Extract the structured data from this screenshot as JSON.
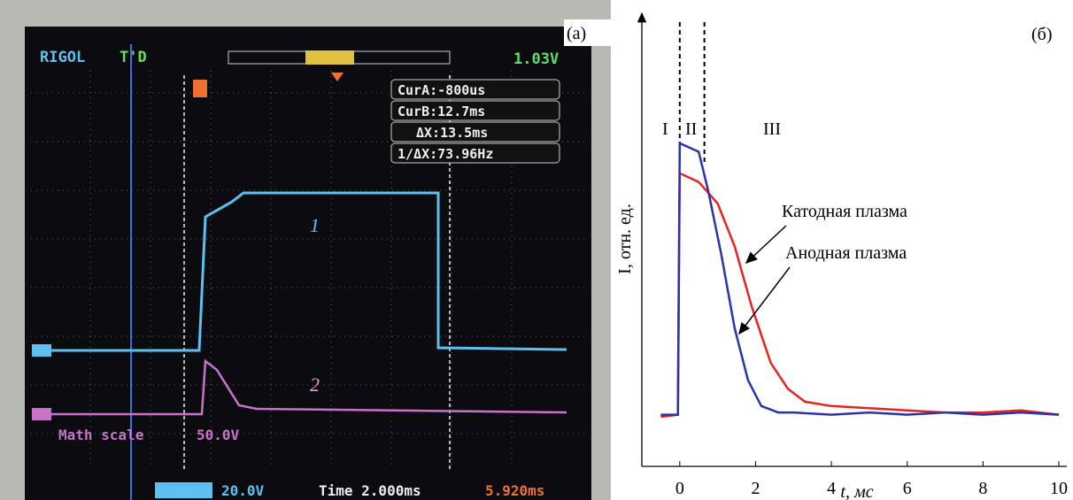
{
  "oscilloscope": {
    "label": "(a)",
    "brand": "RIGOL",
    "trigger_state": "T'D",
    "trigger_level": "1.03V",
    "cursors": [
      "CurA:-800us",
      "CurB:12.7ms",
      "ΔX:13.5ms",
      "1/ΔX:73.96Hz"
    ],
    "trace_labels": [
      "1",
      "2"
    ],
    "math_scale": "Math scale",
    "math_value": "50.0V",
    "channel_scale": "20.0V",
    "time": "Time 2.000ms",
    "offset": "5.920ms"
  },
  "chart_data": {
    "type": "line",
    "label": "(б)",
    "xlabel": "t, мс",
    "ylabel": "I, отн. ед.",
    "xlim": [
      -1,
      10
    ],
    "xticks": [
      0,
      2,
      4,
      6,
      8,
      10
    ],
    "ylim": [
      0,
      1
    ],
    "vlines": [
      0,
      0.65
    ],
    "regions": [
      "I",
      "II",
      "III"
    ],
    "series": [
      {
        "name": "Катодная плазма",
        "color": "#e8231f",
        "x": [
          -0.5,
          -0.05,
          0,
          0.5,
          1.0,
          1.45,
          1.9,
          2.4,
          2.85,
          3.3,
          4,
          5,
          6,
          7,
          8,
          9,
          10
        ],
        "values": [
          0.115,
          0.12,
          0.68,
          0.66,
          0.61,
          0.51,
          0.37,
          0.24,
          0.18,
          0.15,
          0.14,
          0.135,
          0.13,
          0.125,
          0.125,
          0.13,
          0.12
        ]
      },
      {
        "name": "Анодная плазма",
        "color": "#2b33a8",
        "x": [
          -0.5,
          -0.05,
          0,
          0.5,
          0.75,
          1.1,
          1.45,
          1.8,
          2.15,
          2.6,
          3,
          4,
          5,
          6,
          7,
          8,
          9,
          10
        ],
        "values": [
          0.12,
          0.12,
          0.75,
          0.73,
          0.64,
          0.49,
          0.32,
          0.2,
          0.14,
          0.125,
          0.125,
          0.12,
          0.125,
          0.12,
          0.125,
          0.12,
          0.125,
          0.12
        ]
      }
    ]
  }
}
